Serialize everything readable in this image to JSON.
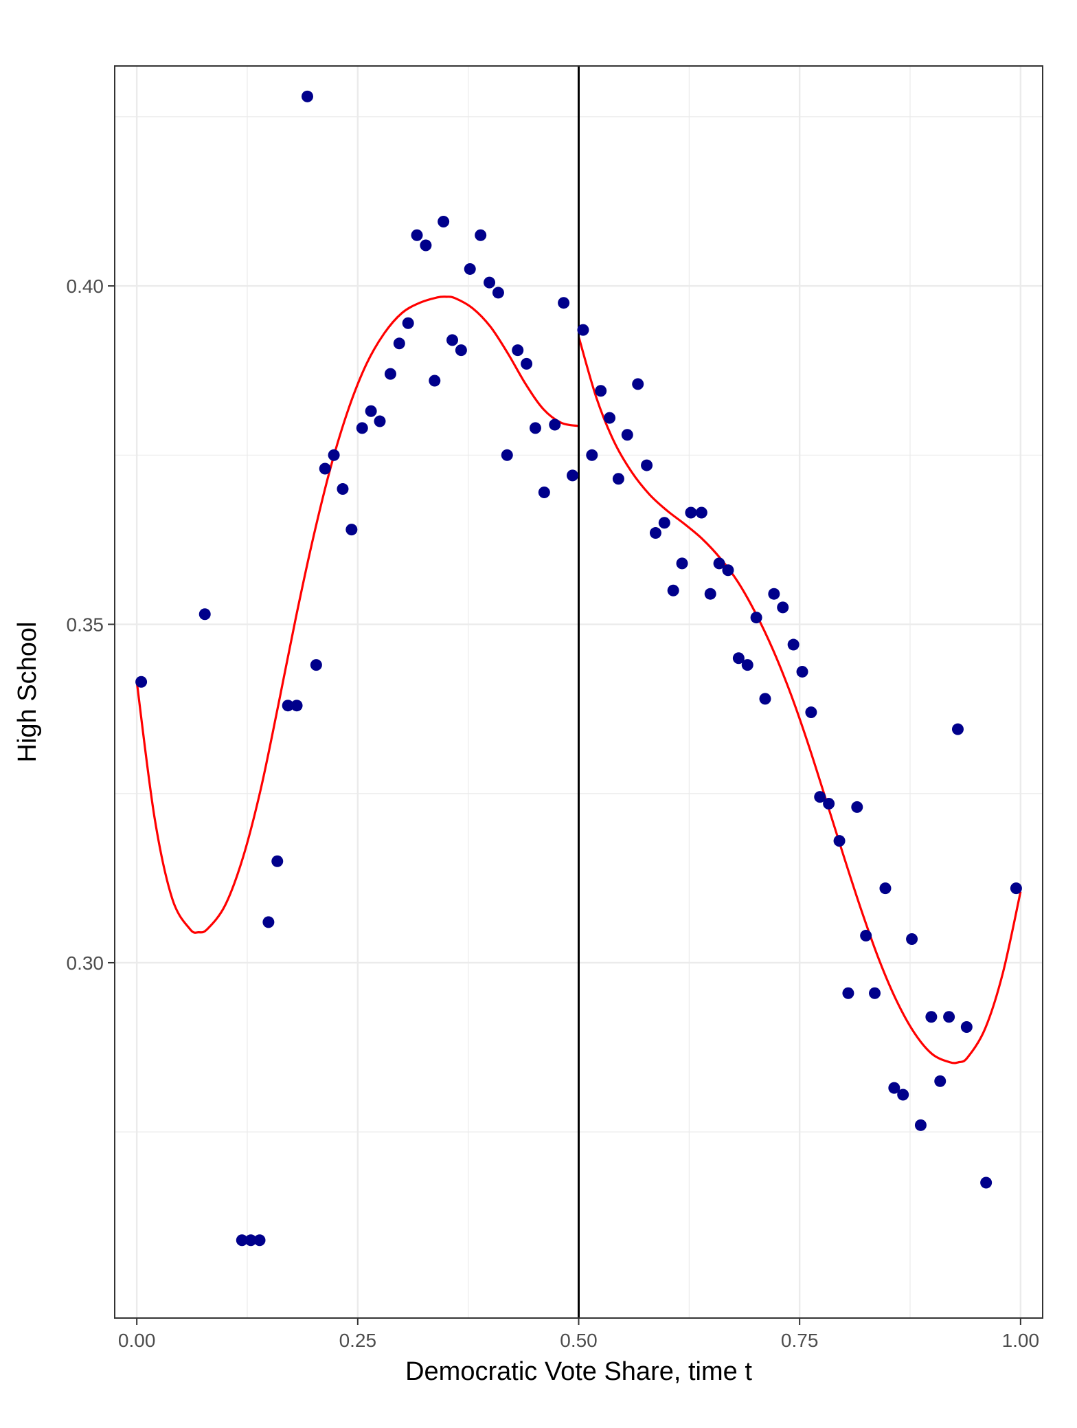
{
  "chart_data": {
    "type": "scatter",
    "title": "",
    "xlabel": "Democratic Vote Share, time t",
    "ylabel": "High School",
    "xlim": [
      -0.025,
      1.025
    ],
    "ylim": [
      0.2475,
      0.4325
    ],
    "x_ticks": [
      0.0,
      0.25,
      0.5,
      0.75,
      1.0
    ],
    "x_tick_labels": [
      "0.00",
      "0.25",
      "0.50",
      "0.75",
      "1.00"
    ],
    "y_ticks": [
      0.3,
      0.35,
      0.4
    ],
    "y_tick_labels": [
      "0.30",
      "0.35",
      "0.40"
    ],
    "grid": true,
    "legend": "none",
    "cutoff": 0.5,
    "colors": {
      "points": "#00008B",
      "fit": "#FF0000",
      "cutoff": "#000000",
      "grid": "#EBEBEB",
      "panel_border": "#333333"
    },
    "points": {
      "x": [
        0.005,
        0.077,
        0.119,
        0.129,
        0.139,
        0.149,
        0.159,
        0.171,
        0.181,
        0.193,
        0.203,
        0.213,
        0.223,
        0.233,
        0.243,
        0.255,
        0.265,
        0.275,
        0.287,
        0.297,
        0.307,
        0.317,
        0.327,
        0.337,
        0.347,
        0.357,
        0.367,
        0.377,
        0.389,
        0.399,
        0.409,
        0.419,
        0.431,
        0.441,
        0.451,
        0.461,
        0.473,
        0.483,
        0.493,
        0.505,
        0.515,
        0.525,
        0.535,
        0.545,
        0.555,
        0.567,
        0.577,
        0.587,
        0.597,
        0.607,
        0.617,
        0.627,
        0.639,
        0.649,
        0.659,
        0.669,
        0.681,
        0.691,
        0.701,
        0.711,
        0.721,
        0.731,
        0.743,
        0.753,
        0.763,
        0.773,
        0.783,
        0.795,
        0.805,
        0.815,
        0.825,
        0.835,
        0.847,
        0.857,
        0.867,
        0.877,
        0.887,
        0.899,
        0.909,
        0.919,
        0.929,
        0.939,
        0.961,
        0.995
      ],
      "y": [
        0.3415,
        0.3515,
        0.259,
        0.259,
        0.259,
        0.306,
        0.315,
        0.338,
        0.338,
        0.428,
        0.344,
        0.373,
        0.375,
        0.37,
        0.364,
        0.379,
        0.3815,
        0.38,
        0.387,
        0.3915,
        0.3945,
        0.4075,
        0.406,
        0.386,
        0.4095,
        0.392,
        0.3905,
        0.4025,
        0.4075,
        0.4005,
        0.399,
        0.375,
        0.3905,
        0.3885,
        0.379,
        0.3695,
        0.3795,
        0.3975,
        0.372,
        0.3935,
        0.375,
        0.3845,
        0.3805,
        0.3715,
        0.378,
        0.3855,
        0.3735,
        0.3635,
        0.365,
        0.355,
        0.359,
        0.3665,
        0.3665,
        0.3545,
        0.359,
        0.358,
        0.345,
        0.344,
        0.351,
        0.339,
        0.3545,
        0.3525,
        0.347,
        0.343,
        0.337,
        0.3245,
        0.3235,
        0.318,
        0.2955,
        0.323,
        0.304,
        0.2955,
        0.311,
        0.2815,
        0.2805,
        0.3035,
        0.276,
        0.292,
        0.2825,
        0.292,
        0.3345,
        0.2905,
        0.2675,
        0.311
      ]
    },
    "fit_left": {
      "x": [
        0.0,
        0.02,
        0.04,
        0.06,
        0.07,
        0.08,
        0.1,
        0.12,
        0.14,
        0.16,
        0.18,
        0.2,
        0.22,
        0.24,
        0.26,
        0.28,
        0.3,
        0.32,
        0.34,
        0.35,
        0.36,
        0.38,
        0.4,
        0.42,
        0.44,
        0.46,
        0.48,
        0.5
      ],
      "y": [
        0.3415,
        0.3215,
        0.3095,
        0.305,
        0.3045,
        0.305,
        0.3085,
        0.3155,
        0.3255,
        0.338,
        0.351,
        0.363,
        0.3735,
        0.382,
        0.3885,
        0.393,
        0.396,
        0.3975,
        0.3983,
        0.3984,
        0.3982,
        0.3967,
        0.394,
        0.39,
        0.3855,
        0.3818,
        0.3798,
        0.3793
      ]
    },
    "fit_right": {
      "x": [
        0.5,
        0.52,
        0.54,
        0.56,
        0.58,
        0.6,
        0.62,
        0.64,
        0.66,
        0.68,
        0.7,
        0.72,
        0.74,
        0.76,
        0.78,
        0.8,
        0.82,
        0.84,
        0.86,
        0.88,
        0.9,
        0.92,
        0.93,
        0.94,
        0.96,
        0.98,
        1.0
      ],
      "y": [
        0.3925,
        0.3835,
        0.377,
        0.3725,
        0.3692,
        0.3668,
        0.3648,
        0.3626,
        0.3598,
        0.3563,
        0.3517,
        0.3462,
        0.3397,
        0.3322,
        0.324,
        0.3157,
        0.3077,
        0.3004,
        0.2943,
        0.2896,
        0.2865,
        0.2853,
        0.2853,
        0.286,
        0.2903,
        0.2985,
        0.3105
      ]
    }
  }
}
